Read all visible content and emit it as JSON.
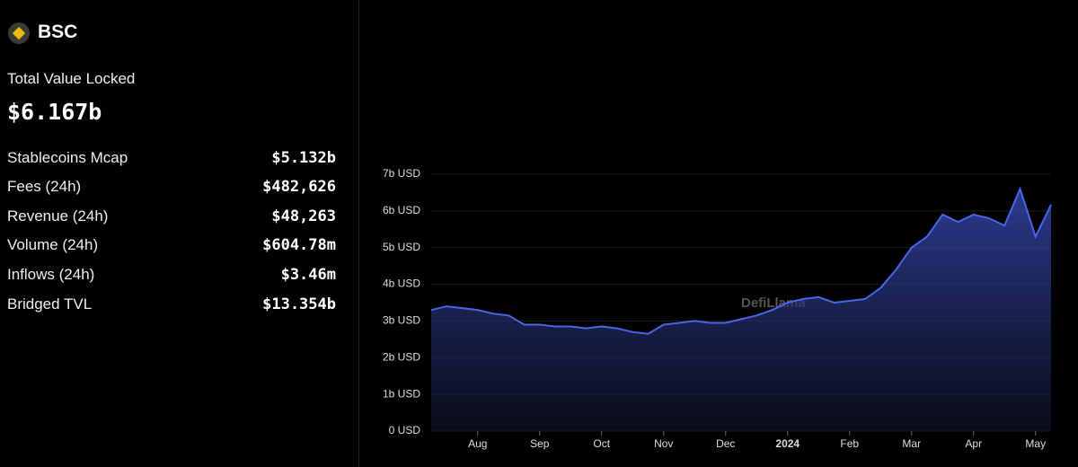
{
  "panel": {
    "chain": "BSC",
    "tvl_label": "Total Value Locked",
    "tvl_value": "$6.167b",
    "rows": [
      [
        "Stablecoins Mcap",
        "$5.132b"
      ],
      [
        "Fees (24h)",
        "$482,626"
      ],
      [
        "Revenue (24h)",
        "$48,263"
      ],
      [
        "Volume (24h)",
        "$604.78m"
      ],
      [
        "Inflows (24h)",
        "$3.46m"
      ],
      [
        "Bridged TVL",
        "$13.354b"
      ]
    ]
  },
  "chart_data": {
    "type": "area",
    "watermark": "DefiLlama",
    "color": "#4a66e8",
    "categories": [
      null,
      null,
      null,
      "Aug",
      null,
      null,
      null,
      "Sep",
      null,
      null,
      null,
      "Oct",
      null,
      null,
      null,
      "Nov",
      null,
      null,
      null,
      "Dec",
      null,
      null,
      null,
      "2024",
      null,
      null,
      null,
      "Feb",
      null,
      null,
      null,
      "Mar",
      null,
      null,
      null,
      "Apr",
      null,
      null,
      null,
      "May",
      null
    ],
    "values": [
      3.3,
      3.4,
      3.35,
      3.3,
      3.2,
      3.15,
      2.9,
      2.9,
      2.85,
      2.85,
      2.8,
      2.85,
      2.8,
      2.7,
      2.65,
      2.9,
      2.95,
      3.0,
      2.95,
      2.95,
      3.05,
      3.15,
      3.3,
      3.5,
      3.6,
      3.65,
      3.5,
      3.55,
      3.6,
      3.9,
      4.4,
      5.0,
      5.3,
      5.9,
      5.7,
      5.9,
      5.8,
      5.6,
      6.6,
      5.3,
      6.17
    ],
    "ylim": [
      0,
      7
    ],
    "yticks": [
      {
        "value": 0,
        "label": "0 USD"
      },
      {
        "value": 1,
        "label": "1b USD"
      },
      {
        "value": 2,
        "label": "2b USD"
      },
      {
        "value": 3,
        "label": "3b USD"
      },
      {
        "value": 4,
        "label": "4b USD"
      },
      {
        "value": 5,
        "label": "5b USD"
      },
      {
        "value": 6,
        "label": "6b USD"
      },
      {
        "value": 7,
        "label": "7b USD"
      }
    ],
    "grid": true
  }
}
